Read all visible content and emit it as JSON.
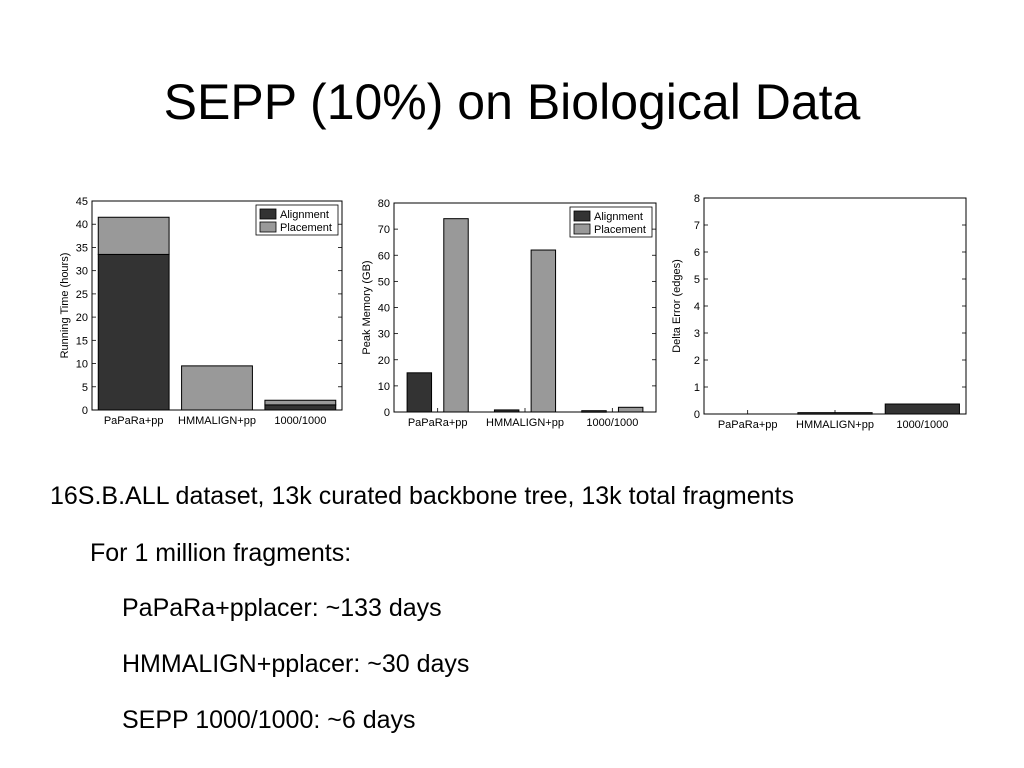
{
  "slide": {
    "title": "SEPP (10%) on Biological Data",
    "bullets": [
      {
        "level": 0,
        "text": "16S.B.ALL dataset, 13k curated backbone tree, 13k total fragments"
      },
      {
        "level": 1,
        "text": "For 1 million fragments:"
      },
      {
        "level": 2,
        "text": "PaPaRa+pplacer: ~133 days"
      },
      {
        "level": 2,
        "text": "HMMALIGN+pplacer: ~30 days"
      },
      {
        "level": 2,
        "text": "SEPP 1000/1000:  ~6 days"
      }
    ]
  },
  "colors": {
    "alignment": "#333333",
    "placement": "#999999"
  },
  "chart_data": [
    {
      "type": "bar",
      "stacked": true,
      "ylabel": "Running Time (hours)",
      "categories": [
        "PaPaRa+pp",
        "HMMALIGN+pp",
        "1000/1000"
      ],
      "series": [
        {
          "name": "Alignment",
          "values": [
            33.5,
            0,
            1.1
          ]
        },
        {
          "name": "Placement",
          "values": [
            8,
            9.5,
            1
          ]
        }
      ],
      "ylim": [
        0,
        45
      ],
      "yticks": [
        0,
        5,
        10,
        15,
        20,
        25,
        30,
        35,
        40,
        45
      ],
      "legend": "top-right"
    },
    {
      "type": "bar",
      "stacked": false,
      "ylabel": "Peak Memory (GB)",
      "categories": [
        "PaPaRa+pp",
        "HMMALIGN+pp",
        "1000/1000"
      ],
      "series": [
        {
          "name": "Alignment",
          "values": [
            15,
            0.8,
            0.5
          ]
        },
        {
          "name": "Placement",
          "values": [
            74,
            62,
            1.8
          ]
        }
      ],
      "ylim": [
        0,
        80
      ],
      "yticks": [
        0,
        10,
        20,
        30,
        40,
        50,
        60,
        70,
        80
      ],
      "legend": "top-right"
    },
    {
      "type": "bar",
      "stacked": false,
      "ylabel": "Delta Error (edges)",
      "categories": [
        "PaPaRa+pp",
        "HMMALIGN+pp",
        "1000/1000"
      ],
      "series": [
        {
          "name": "",
          "values": [
            0,
            0.05,
            0.37
          ]
        }
      ],
      "ylim": [
        0,
        8
      ],
      "yticks": [
        0,
        1,
        2,
        3,
        4,
        5,
        6,
        7,
        8
      ],
      "legend": "none"
    }
  ]
}
